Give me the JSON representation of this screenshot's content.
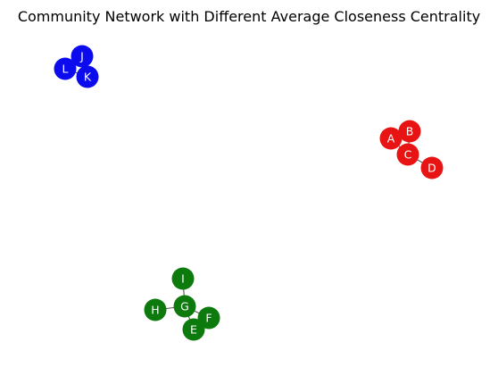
{
  "title": "Community Network with Different Average Closeness Centrality",
  "communities": [
    {
      "id": "blue",
      "color": "#0b0bee",
      "nodes": [
        "J",
        "K",
        "L"
      ]
    },
    {
      "id": "red",
      "color": "#e81414",
      "nodes": [
        "A",
        "B",
        "C",
        "D"
      ]
    },
    {
      "id": "green",
      "color": "#0d7a0d",
      "nodes": [
        "E",
        "F",
        "G",
        "H",
        "I"
      ]
    }
  ],
  "edges": [
    [
      "J",
      "K"
    ],
    [
      "J",
      "L"
    ],
    [
      "K",
      "L"
    ],
    [
      "A",
      "B"
    ],
    [
      "A",
      "C"
    ],
    [
      "B",
      "C"
    ],
    [
      "C",
      "D"
    ],
    [
      "G",
      "I"
    ],
    [
      "G",
      "H"
    ],
    [
      "G",
      "F"
    ],
    [
      "G",
      "E"
    ],
    [
      "E",
      "F"
    ]
  ]
}
